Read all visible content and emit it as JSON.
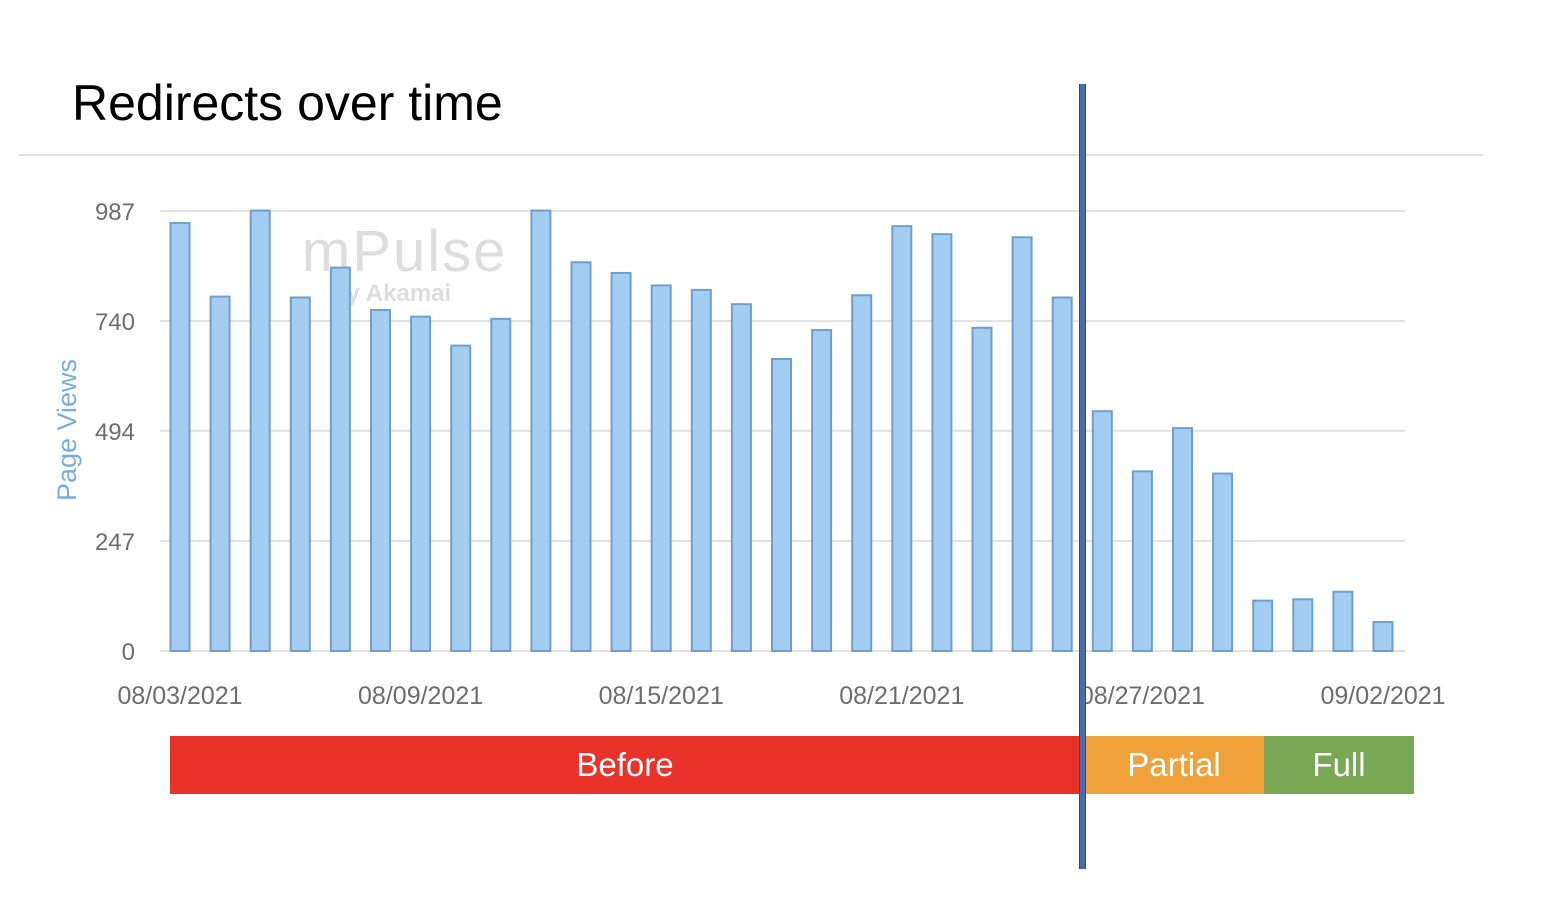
{
  "title": "Redirects over time",
  "watermark": {
    "brand": "mPulse",
    "by": "by Akamai"
  },
  "colors": {
    "bar_fill": "#a4cdf2",
    "bar_stroke": "#6e9fcd",
    "grid": "#e1e1e1",
    "tick_text": "#6d6d6d",
    "ylabel_text": "#78aedd",
    "divider": "#4a6db0",
    "before": "#e9332a",
    "partial": "#f0a13a",
    "full": "#78a856"
  },
  "phases": [
    {
      "label": "Before",
      "color": "#e9332a"
    },
    {
      "label": "Partial",
      "color": "#f0a13a"
    },
    {
      "label": "Full",
      "color": "#78a856"
    }
  ],
  "chart_data": {
    "type": "bar",
    "title": "Redirects over time",
    "xlabel": "",
    "ylabel": "Page Views",
    "ylim": [
      0,
      987
    ],
    "yticks": [
      0,
      247,
      494,
      740,
      987
    ],
    "xtick_labels": [
      "08/03/2021",
      "08/09/2021",
      "08/15/2021",
      "08/21/2021",
      "08/27/2021",
      "09/02/2021"
    ],
    "grid": true,
    "categories": [
      "08/03/2021",
      "08/04/2021",
      "08/05/2021",
      "08/06/2021",
      "08/07/2021",
      "08/08/2021",
      "08/09/2021",
      "08/10/2021",
      "08/11/2021",
      "08/12/2021",
      "08/13/2021",
      "08/14/2021",
      "08/15/2021",
      "08/16/2021",
      "08/17/2021",
      "08/18/2021",
      "08/19/2021",
      "08/20/2021",
      "08/21/2021",
      "08/22/2021",
      "08/23/2021",
      "08/24/2021",
      "08/25/2021",
      "08/26/2021",
      "08/27/2021",
      "08/28/2021",
      "08/29/2021",
      "08/30/2021",
      "08/31/2021",
      "09/01/2021",
      "09/02/2021"
    ],
    "values": [
      960,
      795,
      988,
      793,
      860,
      765,
      750,
      685,
      745,
      988,
      872,
      848,
      820,
      810,
      778,
      655,
      720,
      798,
      953,
      935,
      725,
      928,
      793,
      538,
      403,
      500,
      398,
      113,
      116,
      133,
      65
    ]
  }
}
